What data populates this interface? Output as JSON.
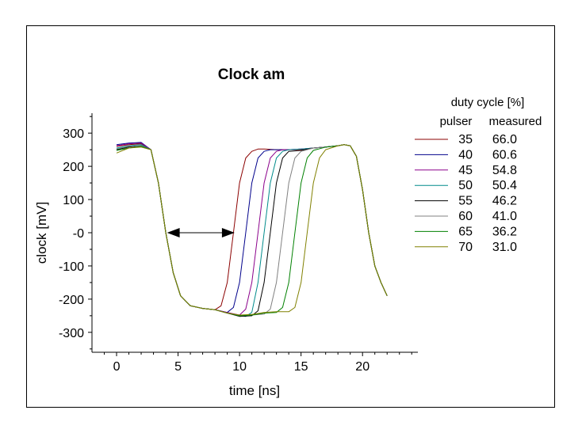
{
  "chart_data": {
    "type": "line",
    "title": "Clock am",
    "xlabel": "time  [ns]",
    "ylabel": "clock  [mV]",
    "xlim": [
      -2,
      24.5
    ],
    "ylim": [
      -360,
      360
    ],
    "xticks": [
      0,
      5,
      10,
      15,
      20
    ],
    "yticks": [
      300,
      200,
      100,
      0,
      -100,
      -200,
      -300
    ],
    "ytick_labels": [
      "300",
      "200",
      "100",
      "-0",
      "-100",
      "-200",
      "-300"
    ],
    "grid": false,
    "legend": {
      "placement": "right",
      "title": "duty cycle [%]",
      "col_headers": [
        "pulser",
        "measured"
      ],
      "entries": [
        {
          "pulser": "35",
          "measured": "66.0",
          "color": "#8b0000"
        },
        {
          "pulser": "40",
          "measured": "60.6",
          "color": "#00008b"
        },
        {
          "pulser": "45",
          "measured": "54.8",
          "color": "#8b008b"
        },
        {
          "pulser": "50",
          "measured": "50.4",
          "color": "#008b8b"
        },
        {
          "pulser": "55",
          "measured": "46.2",
          "color": "#000000"
        },
        {
          "pulser": "60",
          "measured": "41.0",
          "color": "#808080"
        },
        {
          "pulser": "65",
          "measured": "36.2",
          "color": "#008000"
        },
        {
          "pulser": "70",
          "measured": "31.0",
          "color": "#808000"
        }
      ]
    },
    "series": [
      {
        "color": "#8b0000",
        "x": [
          0,
          1,
          2,
          2.8,
          3.4,
          4,
          4.6,
          5.2,
          6,
          7,
          8,
          8.5,
          9,
          9.5,
          10,
          10.5,
          11,
          11.5,
          12,
          13,
          14,
          15,
          16,
          17,
          18,
          18.5,
          19,
          19.5,
          20,
          20.5,
          21,
          21.5,
          22
        ],
        "y": [
          260,
          265,
          268,
          250,
          150,
          0,
          -120,
          -190,
          -220,
          -228,
          -232,
          -220,
          -150,
          0,
          150,
          225,
          245,
          252,
          252,
          250,
          250,
          250,
          255,
          258,
          262,
          265,
          262,
          230,
          130,
          0,
          -100,
          -150,
          -190
        ]
      },
      {
        "color": "#00008b",
        "x": [
          0,
          1,
          2,
          2.8,
          3.4,
          4,
          4.6,
          5.2,
          6,
          7,
          8,
          9,
          9.5,
          10,
          10.5,
          11,
          11.5,
          12,
          12.5,
          13,
          14,
          15,
          16,
          17,
          18,
          18.5,
          19,
          19.5,
          20,
          20.5,
          21,
          21.5,
          22
        ],
        "y": [
          265,
          270,
          272,
          250,
          150,
          0,
          -120,
          -190,
          -220,
          -228,
          -232,
          -240,
          -225,
          -150,
          0,
          150,
          225,
          245,
          250,
          250,
          250,
          252,
          255,
          258,
          262,
          265,
          262,
          230,
          130,
          0,
          -100,
          -150,
          -190
        ]
      },
      {
        "color": "#8b008b",
        "x": [
          0,
          1,
          2,
          2.8,
          3.4,
          4,
          4.6,
          5.2,
          6,
          7,
          8,
          9,
          10,
          10.5,
          11,
          11.5,
          12,
          12.5,
          13,
          13.5,
          14,
          15,
          16,
          17,
          18,
          18.5,
          19,
          19.5,
          20,
          20.5,
          21,
          21.5,
          22
        ],
        "y": [
          262,
          268,
          270,
          250,
          150,
          0,
          -120,
          -190,
          -220,
          -228,
          -232,
          -240,
          -248,
          -230,
          -150,
          0,
          150,
          225,
          245,
          250,
          250,
          252,
          255,
          258,
          262,
          265,
          262,
          230,
          130,
          0,
          -100,
          -150,
          -190
        ]
      },
      {
        "color": "#008b8b",
        "x": [
          0,
          1,
          2,
          2.8,
          3.4,
          4,
          4.6,
          5.2,
          6,
          7,
          8,
          9,
          10,
          10.5,
          11,
          11.5,
          12,
          12.5,
          13,
          13.5,
          14,
          15,
          16,
          17,
          18,
          18.5,
          19,
          19.5,
          20,
          20.5,
          21,
          21.5,
          22
        ],
        "y": [
          255,
          262,
          265,
          250,
          150,
          0,
          -120,
          -190,
          -220,
          -228,
          -232,
          -242,
          -250,
          -252,
          -240,
          -150,
          0,
          150,
          225,
          245,
          250,
          252,
          255,
          258,
          262,
          265,
          262,
          230,
          130,
          0,
          -100,
          -150,
          -190
        ]
      },
      {
        "color": "#000000",
        "x": [
          0,
          1,
          2,
          2.8,
          3.4,
          4,
          4.6,
          5.2,
          6,
          7,
          8,
          9,
          10,
          11,
          11.5,
          12,
          12.5,
          13,
          13.5,
          14,
          15,
          16,
          17,
          18,
          18.5,
          19,
          19.5,
          20,
          20.5,
          21,
          21.5,
          22
        ],
        "y": [
          250,
          258,
          262,
          250,
          150,
          0,
          -120,
          -190,
          -220,
          -228,
          -232,
          -242,
          -252,
          -250,
          -235,
          -150,
          0,
          150,
          225,
          245,
          248,
          255,
          258,
          262,
          265,
          262,
          230,
          130,
          0,
          -100,
          -150,
          -190
        ]
      },
      {
        "color": "#808080",
        "x": [
          0,
          1,
          2,
          2.8,
          3.4,
          4,
          4.6,
          5.2,
          6,
          7,
          8,
          9,
          10,
          11,
          12,
          12.5,
          13,
          13.5,
          14,
          14.5,
          15,
          16,
          17,
          18,
          18.5,
          19,
          19.5,
          20,
          20.5,
          21,
          21.5,
          22
        ],
        "y": [
          252,
          260,
          262,
          250,
          150,
          0,
          -120,
          -190,
          -220,
          -228,
          -232,
          -242,
          -250,
          -248,
          -245,
          -230,
          -150,
          0,
          150,
          225,
          245,
          255,
          258,
          262,
          265,
          262,
          230,
          130,
          0,
          -100,
          -150,
          -190
        ]
      },
      {
        "color": "#008000",
        "x": [
          0,
          1,
          2,
          2.8,
          3.4,
          4,
          4.6,
          5.2,
          6,
          7,
          8,
          9,
          10,
          11,
          12,
          13,
          13.5,
          14,
          14.5,
          15,
          15.5,
          16,
          17,
          18,
          18.5,
          19,
          19.5,
          20,
          20.5,
          21,
          21.5,
          22
        ],
        "y": [
          248,
          255,
          260,
          250,
          150,
          0,
          -120,
          -190,
          -220,
          -228,
          -232,
          -242,
          -250,
          -248,
          -242,
          -240,
          -225,
          -150,
          0,
          150,
          225,
          248,
          258,
          262,
          265,
          262,
          230,
          130,
          0,
          -100,
          -150,
          -190
        ]
      },
      {
        "color": "#808000",
        "x": [
          0,
          1,
          2,
          2.8,
          3.4,
          4,
          4.6,
          5.2,
          6,
          7,
          8,
          9,
          10,
          11,
          12,
          13,
          14,
          14.5,
          15,
          15.5,
          16,
          16.5,
          17,
          18,
          18.5,
          19,
          19.5,
          20,
          20.5,
          21,
          21.5,
          22
        ],
        "y": [
          240,
          255,
          258,
          250,
          150,
          0,
          -120,
          -190,
          -220,
          -228,
          -232,
          -242,
          -248,
          -246,
          -240,
          -238,
          -238,
          -225,
          -150,
          0,
          150,
          225,
          250,
          262,
          265,
          262,
          230,
          130,
          0,
          -100,
          -150,
          -190
        ]
      }
    ],
    "annotation": {
      "type": "double-arrow",
      "x0": 4.1,
      "x1": 9.6,
      "y": 0
    }
  }
}
